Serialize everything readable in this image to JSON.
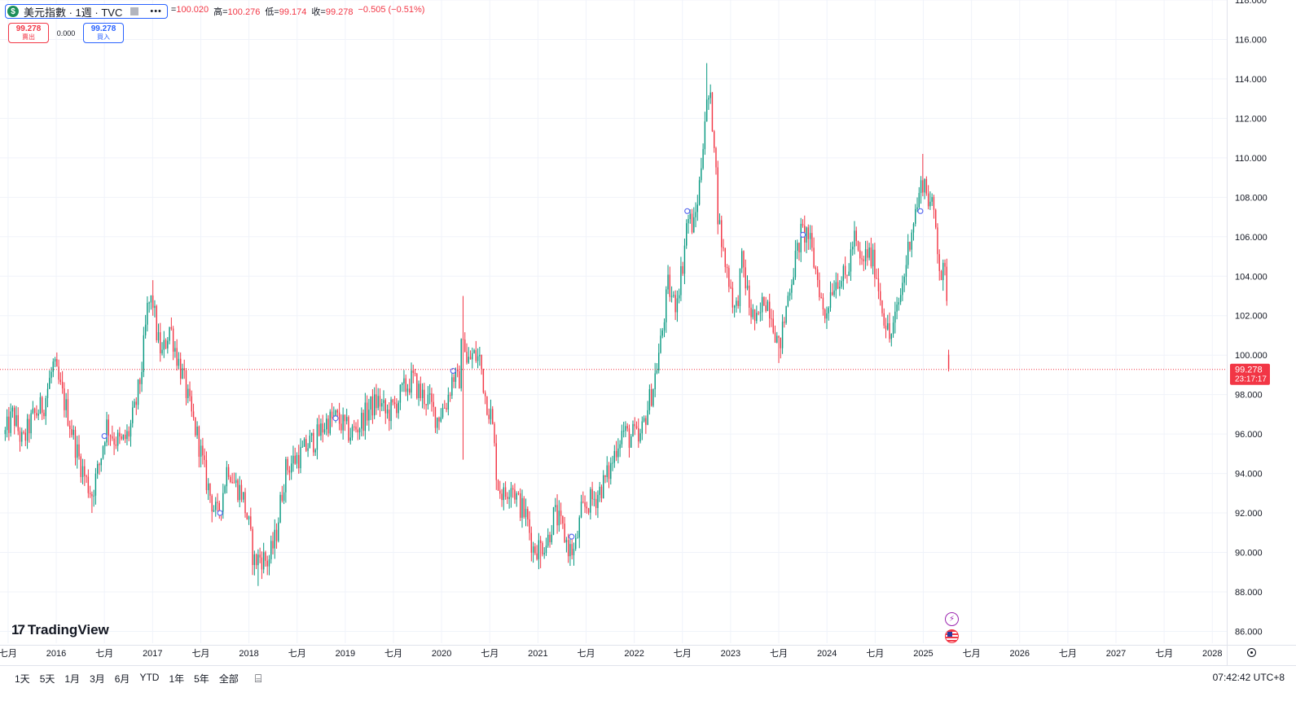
{
  "legend": {
    "symbol_icon": "$",
    "title": "美元指數 · 1週 · TVC",
    "flag_icon": "flag-icon",
    "more_icon": "•••",
    "ohlc": [
      {
        "key": "=",
        "value": "100.020"
      },
      {
        "key": "高=",
        "value": "100.276"
      },
      {
        "key": "低=",
        "value": "99.174"
      },
      {
        "key": "收=",
        "value": "99.278"
      },
      {
        "key": "",
        "value": "−0.505 (−0.51%)"
      }
    ]
  },
  "trade": {
    "sell_price": "99.278",
    "sell_label": "賣出",
    "spread": "0.000",
    "buy_price": "99.278",
    "buy_label": "買入"
  },
  "logo": {
    "mark": "17",
    "name": "TradingView"
  },
  "bottom_bar": {
    "ranges": [
      "1天",
      "5天",
      "1月",
      "3月",
      "6月",
      "YTD",
      "1年",
      "5年",
      "全部"
    ],
    "compare_icon": "compare-icon",
    "clock": "07:42:42 UTC+8"
  },
  "colors": {
    "up": "#089981",
    "down": "#f23645",
    "grid": "#f0f3fa",
    "text": "#131722",
    "accent": "#2962ff"
  },
  "chart_data": {
    "type": "candlestick",
    "interval": "1W",
    "y_axis": {
      "position": "right",
      "min": 85.4,
      "max": 118.0
    },
    "y_ticks": [
      "86.000",
      "88.000",
      "90.000",
      "92.000",
      "94.000",
      "96.000",
      "98.000",
      "100.000",
      "102.000",
      "104.000",
      "106.000",
      "108.000",
      "110.000",
      "112.000",
      "114.000",
      "116.000",
      "118.000"
    ],
    "x_axis": {
      "start": 2015.45,
      "end": 2028.15
    },
    "x_ticks": [
      {
        "label": "七月",
        "t": 2015.5
      },
      {
        "label": "2016",
        "t": 2016.0
      },
      {
        "label": "七月",
        "t": 2016.5
      },
      {
        "label": "2017",
        "t": 2017.0
      },
      {
        "label": "七月",
        "t": 2017.5
      },
      {
        "label": "2018",
        "t": 2018.0
      },
      {
        "label": "七月",
        "t": 2018.5
      },
      {
        "label": "2019",
        "t": 2019.0
      },
      {
        "label": "七月",
        "t": 2019.5
      },
      {
        "label": "2020",
        "t": 2020.0
      },
      {
        "label": "七月",
        "t": 2020.5
      },
      {
        "label": "2021",
        "t": 2021.0
      },
      {
        "label": "七月",
        "t": 2021.5
      },
      {
        "label": "2022",
        "t": 2022.0
      },
      {
        "label": "七月",
        "t": 2022.5
      },
      {
        "label": "2023",
        "t": 2023.0
      },
      {
        "label": "七月",
        "t": 2023.5
      },
      {
        "label": "2024",
        "t": 2024.0
      },
      {
        "label": "七月",
        "t": 2024.5
      },
      {
        "label": "2025",
        "t": 2025.0
      },
      {
        "label": "七月",
        "t": 2025.5
      },
      {
        "label": "2026",
        "t": 2026.0
      },
      {
        "label": "七月",
        "t": 2026.5
      },
      {
        "label": "2027",
        "t": 2027.0
      },
      {
        "label": "七月",
        "t": 2027.5
      },
      {
        "label": "2028",
        "t": 2028.0
      }
    ],
    "last_price": {
      "value": 99.278,
      "label": "99.278",
      "countdown": "23:17:17"
    },
    "grid": true,
    "close_path": [
      [
        2015.47,
        96.0
      ],
      [
        2015.55,
        97.0
      ],
      [
        2015.65,
        95.5
      ],
      [
        2015.75,
        96.8
      ],
      [
        2015.87,
        97.5
      ],
      [
        2015.97,
        99.5
      ],
      [
        2016.03,
        98.5
      ],
      [
        2016.12,
        97.0
      ],
      [
        2016.22,
        95.0
      ],
      [
        2016.32,
        93.5
      ],
      [
        2016.37,
        93.0
      ],
      [
        2016.45,
        94.5
      ],
      [
        2016.52,
        96.5
      ],
      [
        2016.6,
        95.8
      ],
      [
        2016.68,
        95.5
      ],
      [
        2016.75,
        96.0
      ],
      [
        2016.82,
        97.3
      ],
      [
        2016.88,
        99.0
      ],
      [
        2016.95,
        102.5
      ],
      [
        2017.0,
        102.8
      ],
      [
        2017.05,
        100.8
      ],
      [
        2017.1,
        100.0
      ],
      [
        2017.18,
        101.5
      ],
      [
        2017.25,
        100.0
      ],
      [
        2017.32,
        98.8
      ],
      [
        2017.4,
        97.0
      ],
      [
        2017.47,
        95.8
      ],
      [
        2017.55,
        93.8
      ],
      [
        2017.62,
        92.5
      ],
      [
        2017.67,
        91.8
      ],
      [
        2017.72,
        92.8
      ],
      [
        2017.78,
        94.5
      ],
      [
        2017.85,
        93.5
      ],
      [
        2017.93,
        93.0
      ],
      [
        2018.0,
        91.3
      ],
      [
        2018.05,
        89.5
      ],
      [
        2018.12,
        89.8
      ],
      [
        2018.2,
        89.5
      ],
      [
        2018.28,
        90.8
      ],
      [
        2018.32,
        92.3
      ],
      [
        2018.38,
        94.2
      ],
      [
        2018.47,
        94.7
      ],
      [
        2018.55,
        95.0
      ],
      [
        2018.62,
        95.5
      ],
      [
        2018.7,
        95.8
      ],
      [
        2018.8,
        96.6
      ],
      [
        2018.9,
        96.8
      ],
      [
        2018.97,
        96.5
      ],
      [
        2019.05,
        96.0
      ],
      [
        2019.15,
        96.5
      ],
      [
        2019.25,
        97.3
      ],
      [
        2019.35,
        97.7
      ],
      [
        2019.42,
        97.0
      ],
      [
        2019.5,
        97.3
      ],
      [
        2019.6,
        98.2
      ],
      [
        2019.7,
        98.8
      ],
      [
        2019.78,
        98.0
      ],
      [
        2019.85,
        97.8
      ],
      [
        2019.95,
        96.8
      ],
      [
        2020.05,
        97.6
      ],
      [
        2020.12,
        99.0
      ],
      [
        2020.18,
        98.5
      ],
      [
        2020.22,
        101.5
      ],
      [
        2020.26,
        99.5
      ],
      [
        2020.32,
        100.0
      ],
      [
        2020.4,
        99.8
      ],
      [
        2020.45,
        98.0
      ],
      [
        2020.52,
        96.8
      ],
      [
        2020.58,
        93.5
      ],
      [
        2020.65,
        92.8
      ],
      [
        2020.72,
        93.6
      ],
      [
        2020.8,
        92.5
      ],
      [
        2020.88,
        91.8
      ],
      [
        2020.95,
        90.2
      ],
      [
        2021.02,
        90.3
      ],
      [
        2021.1,
        90.6
      ],
      [
        2021.17,
        92.0
      ],
      [
        2021.25,
        91.2
      ],
      [
        2021.32,
        90.2
      ],
      [
        2021.38,
        90.0
      ],
      [
        2021.45,
        92.0
      ],
      [
        2021.52,
        92.5
      ],
      [
        2021.6,
        92.8
      ],
      [
        2021.68,
        93.5
      ],
      [
        2021.75,
        94.2
      ],
      [
        2021.82,
        95.5
      ],
      [
        2021.88,
        96.2
      ],
      [
        2021.95,
        95.8
      ],
      [
        2022.0,
        96.0
      ],
      [
        2022.05,
        95.5
      ],
      [
        2022.12,
        97.0
      ],
      [
        2022.2,
        98.5
      ],
      [
        2022.28,
        100.8
      ],
      [
        2022.35,
        103.5
      ],
      [
        2022.42,
        102.5
      ],
      [
        2022.5,
        104.5
      ],
      [
        2022.55,
        107.0
      ],
      [
        2022.62,
        106.5
      ],
      [
        2022.68,
        108.8
      ],
      [
        2022.73,
        112.0
      ],
      [
        2022.78,
        113.2
      ],
      [
        2022.83,
        111.0
      ],
      [
        2022.87,
        107.0
      ],
      [
        2022.93,
        105.0
      ],
      [
        2023.0,
        103.5
      ],
      [
        2023.05,
        102.0
      ],
      [
        2023.12,
        104.8
      ],
      [
        2023.2,
        102.3
      ],
      [
        2023.28,
        101.5
      ],
      [
        2023.35,
        103.0
      ],
      [
        2023.42,
        102.3
      ],
      [
        2023.5,
        100.3
      ],
      [
        2023.55,
        101.5
      ],
      [
        2023.6,
        103.2
      ],
      [
        2023.67,
        104.8
      ],
      [
        2023.73,
        106.1
      ],
      [
        2023.8,
        106.2
      ],
      [
        2023.85,
        105.0
      ],
      [
        2023.92,
        103.5
      ],
      [
        2023.97,
        101.8
      ],
      [
        2024.05,
        103.5
      ],
      [
        2024.12,
        104.0
      ],
      [
        2024.2,
        103.8
      ],
      [
        2024.28,
        106.0
      ],
      [
        2024.35,
        104.5
      ],
      [
        2024.42,
        105.2
      ],
      [
        2024.5,
        104.5
      ],
      [
        2024.57,
        102.5
      ],
      [
        2024.65,
        100.8
      ],
      [
        2024.72,
        102.0
      ],
      [
        2024.8,
        104.0
      ],
      [
        2024.87,
        106.3
      ],
      [
        2024.93,
        107.5
      ],
      [
        2025.0,
        109.0
      ],
      [
        2025.05,
        108.0
      ],
      [
        2025.12,
        107.0
      ],
      [
        2025.18,
        104.0
      ],
      [
        2025.22,
        104.2
      ],
      [
        2025.26,
        102.5
      ],
      [
        2025.28,
        99.278
      ]
    ],
    "extremes": [
      {
        "t": 2016.37,
        "low": 92.0
      },
      {
        "t": 2017.0,
        "high": 103.8
      },
      {
        "t": 2018.1,
        "low": 88.3
      },
      {
        "t": 2020.22,
        "high": 103.0,
        "low": 94.7
      },
      {
        "t": 2021.02,
        "low": 89.2
      },
      {
        "t": 2022.75,
        "high": 114.8
      },
      {
        "t": 2023.5,
        "low": 99.6
      },
      {
        "t": 2025.0,
        "high": 110.2
      },
      {
        "t": 2025.28,
        "low": 99.174
      }
    ],
    "markers": [
      {
        "t": 2016.5,
        "price": 95.9
      },
      {
        "t": 2017.7,
        "price": 92.0
      },
      {
        "t": 2018.9,
        "price": 96.8
      },
      {
        "t": 2020.12,
        "price": 99.2
      },
      {
        "t": 2021.35,
        "price": 90.8
      },
      {
        "t": 2022.55,
        "price": 107.3
      },
      {
        "t": 2023.75,
        "price": 106.1
      },
      {
        "t": 2024.97,
        "price": 107.3
      }
    ]
  }
}
